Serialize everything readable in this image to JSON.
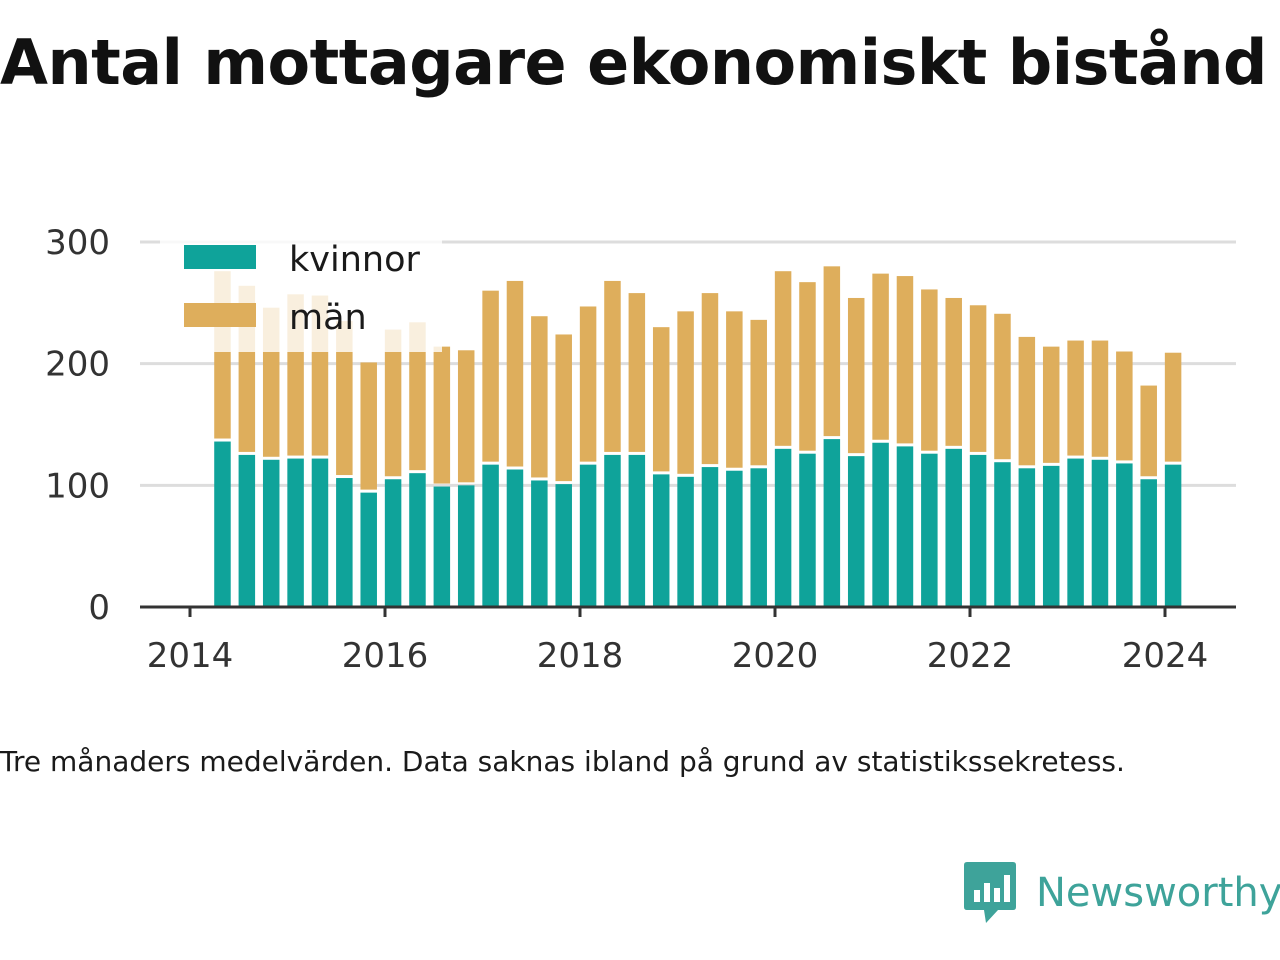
{
  "title": "Antal mottagare ekonomiskt bistånd",
  "note": "Tre månaders medelvärden. Data saknas ibland på grund av statistikssekretess.",
  "brand": {
    "name": "Newsworthy",
    "logo_icon": "bar-chart-speech-icon",
    "color": "#3ea39a"
  },
  "colors": {
    "kvinnor": "#0fa39a",
    "man": "#deae5c",
    "grid": "#dddddd",
    "axis": "#333333"
  },
  "chart_data": {
    "type": "bar",
    "stacked": true,
    "title": "Antal mottagare ekonomiskt bistånd",
    "xlabel": "",
    "ylabel": "",
    "ylim": [
      0,
      300
    ],
    "yticks": [
      0,
      100,
      200,
      300
    ],
    "xticks": [
      "2014",
      "2016",
      "2018",
      "2020",
      "2022",
      "2024"
    ],
    "xlim": [
      2013.75,
      2024.75
    ],
    "grid": "horizontal",
    "legend_position": "top-left",
    "x": [
      2014.333,
      2014.583,
      2014.833,
      2015.083,
      2015.333,
      2015.583,
      2015.833,
      2016.083,
      2016.333,
      2016.583,
      2016.833,
      2017.083,
      2017.333,
      2017.583,
      2017.833,
      2018.083,
      2018.333,
      2018.583,
      2018.833,
      2019.083,
      2019.333,
      2019.583,
      2019.833,
      2020.083,
      2020.333,
      2020.583,
      2020.833,
      2021.083,
      2021.333,
      2021.583,
      2021.833,
      2022.083,
      2022.333,
      2022.583,
      2022.833,
      2023.083,
      2023.333,
      2023.583,
      2023.833,
      2024.083
    ],
    "series": [
      {
        "name": "kvinnor",
        "values": [
          136,
          125,
          121,
          122,
          122,
          106,
          94,
          105,
          110,
          99,
          100,
          117,
          113,
          104,
          101,
          117,
          125,
          125,
          109,
          107,
          115,
          112,
          114,
          130,
          126,
          138,
          124,
          135,
          132,
          126,
          130,
          125,
          119,
          114,
          116,
          122,
          121,
          118,
          105,
          117
        ]
      },
      {
        "name": "män",
        "values": [
          140,
          139,
          125,
          135,
          134,
          129,
          107,
          123,
          124,
          115,
          111,
          143,
          155,
          135,
          123,
          130,
          143,
          133,
          121,
          136,
          143,
          131,
          122,
          146,
          141,
          142,
          130,
          139,
          140,
          135,
          124,
          123,
          122,
          108,
          98,
          97,
          98,
          92,
          77,
          92
        ]
      }
    ]
  }
}
